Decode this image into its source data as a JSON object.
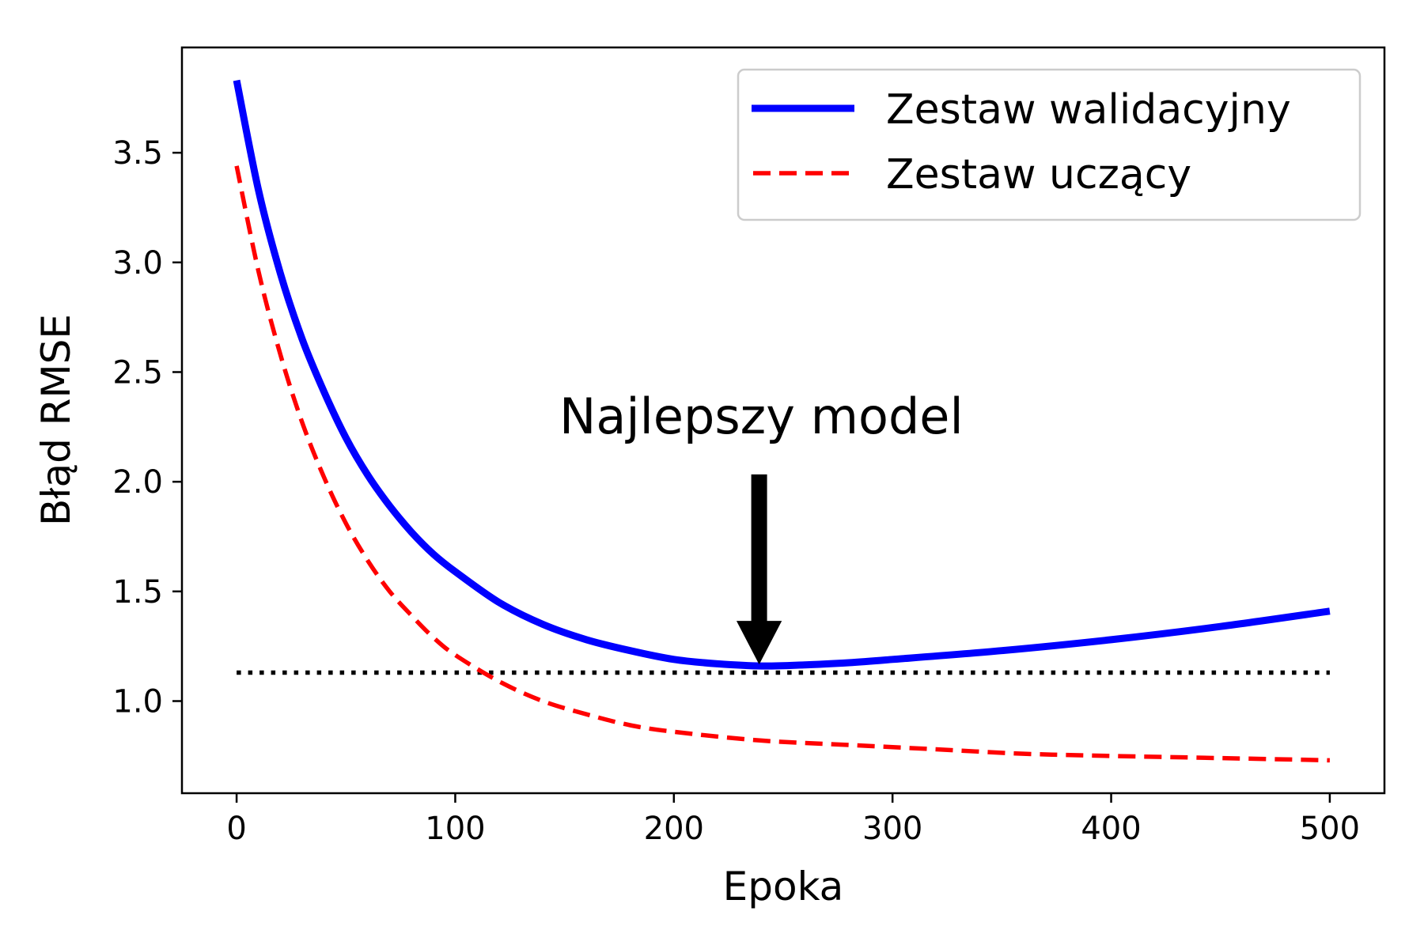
{
  "chart_data": {
    "type": "line",
    "title": "",
    "xlabel": "Epoka",
    "ylabel": "Błąd RMSE",
    "xlim": [
      -25,
      525
    ],
    "ylim": [
      0.58,
      3.98
    ],
    "xticks": [
      0,
      100,
      200,
      300,
      400,
      500
    ],
    "yticks": [
      1.0,
      1.5,
      2.0,
      2.5,
      3.0,
      3.5
    ],
    "grid": false,
    "legend_position": "top-right",
    "series": [
      {
        "name": "Zestaw walidacyjny",
        "color": "#0000ff",
        "style": "solid",
        "x": [
          0,
          10,
          20,
          30,
          40,
          50,
          60,
          70,
          80,
          90,
          100,
          120,
          140,
          160,
          180,
          200,
          220,
          240,
          260,
          280,
          300,
          350,
          400,
          450,
          500
        ],
        "y": [
          3.83,
          3.33,
          2.95,
          2.65,
          2.41,
          2.2,
          2.03,
          1.89,
          1.77,
          1.67,
          1.59,
          1.45,
          1.35,
          1.28,
          1.23,
          1.19,
          1.17,
          1.16,
          1.165,
          1.175,
          1.19,
          1.23,
          1.28,
          1.34,
          1.41
        ]
      },
      {
        "name": "Zestaw uczący",
        "color": "#ff0000",
        "style": "dashed",
        "x": [
          0,
          10,
          20,
          30,
          40,
          50,
          60,
          70,
          80,
          90,
          100,
          120,
          140,
          160,
          180,
          200,
          240,
          280,
          320,
          360,
          400,
          450,
          500
        ],
        "y": [
          3.44,
          2.96,
          2.58,
          2.27,
          2.02,
          1.81,
          1.64,
          1.5,
          1.39,
          1.29,
          1.21,
          1.09,
          1.0,
          0.94,
          0.89,
          0.86,
          0.82,
          0.8,
          0.78,
          0.76,
          0.75,
          0.74,
          0.73
        ]
      },
      {
        "name": "",
        "color": "#000000",
        "style": "dotted",
        "x": [
          0,
          500
        ],
        "y": [
          1.13,
          1.13
        ]
      }
    ],
    "annotation": {
      "text": "Najlepszy model",
      "point": [
        239,
        1.16
      ],
      "text_position": [
        240,
        2.22
      ],
      "arrow_start_y": 2.03
    }
  }
}
